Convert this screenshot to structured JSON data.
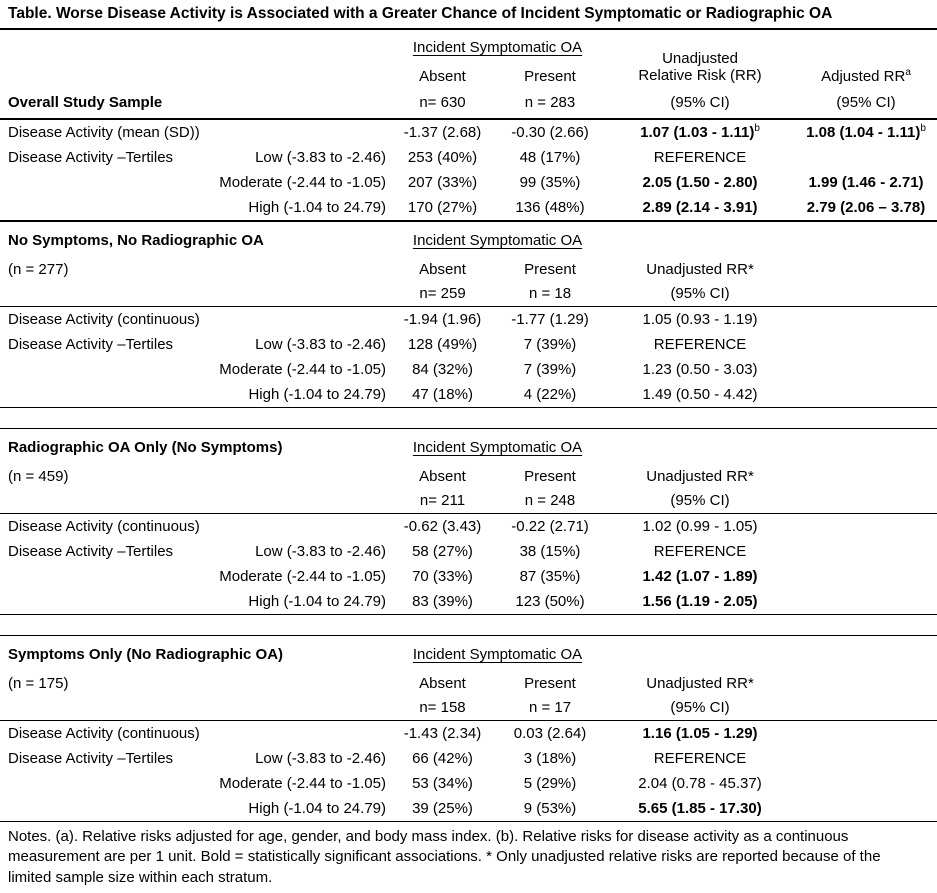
{
  "title": "Table. Worse Disease Activity is Associated with a Greater Chance of Incident Symptomatic or Radiographic OA",
  "notes": "Notes. (a). Relative risks adjusted for age, gender, and body mass index. (b). Relative risks for disease activity as a continuous measurement are per 1 unit. Bold = statistically significant associations. * Only unadjusted relative risks are reported because of the limited sample size within each stratum.",
  "colors": {
    "text": "#000000",
    "background": "#ffffff",
    "rule": "#000000"
  },
  "table": {
    "sections": [
      {
        "id": "overall-study-sample",
        "layout": "overall",
        "gap_before": false,
        "title": "Overall Study Sample",
        "subtitle": "",
        "incident_header": "Incident Symptomatic OA",
        "absent_label": "Absent",
        "present_label": "Present",
        "n_absent": "n= 630",
        "n_present": "n = 283",
        "rr_header_lines": [
          "Unadjusted",
          "Relative Risk (RR)"
        ],
        "rr_ci_label": "(95% CI)",
        "adjusted_header": "Adjusted RR",
        "adjusted_header_sup": "a",
        "adjusted_ci_label": "(95% CI)",
        "rows": [
          {
            "label": "Disease Activity (mean (SD))",
            "tertile": "",
            "absent": "-1.37 (2.68)",
            "present": "-0.30 (2.66)",
            "rr": "1.07 (1.03 - 1.11)",
            "rr_sup": "b",
            "rr_bold": true,
            "adjusted": "1.08 (1.04 - 1.11)",
            "adjusted_sup": "b",
            "adjusted_bold": true
          },
          {
            "label": "Disease Activity –Tertiles",
            "tertile": "Low (-3.83 to -2.46)",
            "absent": "253 (40%)",
            "present": "48 (17%)",
            "rr": "REFERENCE",
            "rr_bold": false,
            "adjusted": "",
            "adjusted_bold": false
          },
          {
            "label": "",
            "tertile": "Moderate (-2.44 to -1.05)",
            "absent": "207 (33%)",
            "present": "99 (35%)",
            "rr": "2.05 (1.50 - 2.80)",
            "rr_bold": true,
            "adjusted": "1.99 (1.46 - 2.71)",
            "adjusted_bold": true
          },
          {
            "label": "",
            "tertile": "High (-1.04 to 24.79)",
            "absent": "170 (27%)",
            "present": "136 (48%)",
            "rr": "2.89 (2.14 - 3.91)",
            "rr_bold": true,
            "adjusted": "2.79 (2.06 – 3.78)",
            "adjusted_bold": true
          }
        ]
      },
      {
        "id": "no-symptoms-no-radiographic-oa",
        "layout": "stratum",
        "gap_before": false,
        "title": "No Symptoms, No Radiographic OA",
        "subtitle": "(n = 277)",
        "incident_header": "Incident Symptomatic OA",
        "absent_label": "Absent",
        "present_label": "Present",
        "n_absent": "n= 259",
        "n_present": "n = 18",
        "rr_header_lines": [
          "Unadjusted RR*"
        ],
        "rr_ci_label": "(95% CI)",
        "rows": [
          {
            "label": "Disease Activity (continuous)",
            "tertile": "",
            "absent": "-1.94 (1.96)",
            "present": "-1.77 (1.29)",
            "rr": "1.05 (0.93 - 1.19)",
            "rr_bold": false,
            "adjusted": ""
          },
          {
            "label": "Disease Activity –Tertiles",
            "tertile": "Low (-3.83 to -2.46)",
            "absent": "128 (49%)",
            "present": "7 (39%)",
            "rr": "REFERENCE",
            "rr_bold": false,
            "adjusted": ""
          },
          {
            "label": "",
            "tertile": "Moderate (-2.44 to -1.05)",
            "absent": "84 (32%)",
            "present": "7 (39%)",
            "rr": "1.23 (0.50 - 3.03)",
            "rr_bold": false,
            "adjusted": ""
          },
          {
            "label": "",
            "tertile": "High (-1.04 to 24.79)",
            "absent": "47 (18%)",
            "present": "4 (22%)",
            "rr": "1.49 (0.50 - 4.42)",
            "rr_bold": false,
            "adjusted": ""
          }
        ]
      },
      {
        "id": "radiographic-oa-only",
        "layout": "stratum",
        "gap_before": true,
        "title": "Radiographic OA Only (No Symptoms)",
        "subtitle": "(n = 459)",
        "incident_header": "Incident Symptomatic OA",
        "absent_label": "Absent",
        "present_label": "Present",
        "n_absent": "n= 211",
        "n_present": "n = 248",
        "rr_header_lines": [
          "Unadjusted RR*"
        ],
        "rr_ci_label": "(95% CI)",
        "rows": [
          {
            "label": "Disease Activity (continuous)",
            "tertile": "",
            "absent": "-0.62 (3.43)",
            "present": "-0.22 (2.71)",
            "rr": "1.02 (0.99 - 1.05)",
            "rr_bold": false,
            "adjusted": ""
          },
          {
            "label": "Disease Activity –Tertiles",
            "tertile": "Low (-3.83 to -2.46)",
            "absent": "58 (27%)",
            "present": "38 (15%)",
            "rr": "REFERENCE",
            "rr_bold": false,
            "adjusted": ""
          },
          {
            "label": "",
            "tertile": "Moderate (-2.44 to -1.05)",
            "absent": "70 (33%)",
            "present": "87 (35%)",
            "rr": "1.42 (1.07 - 1.89)",
            "rr_bold": true,
            "adjusted": ""
          },
          {
            "label": "",
            "tertile": "High (-1.04 to 24.79)",
            "absent": "83 (39%)",
            "present": "123 (50%)",
            "rr": "1.56 (1.19 - 2.05)",
            "rr_bold": true,
            "adjusted": ""
          }
        ]
      },
      {
        "id": "symptoms-only",
        "layout": "stratum",
        "gap_before": true,
        "title": "Symptoms Only (No Radiographic OA)",
        "subtitle": "(n = 175)",
        "incident_header": "Incident Symptomatic OA",
        "absent_label": "Absent",
        "present_label": "Present",
        "n_absent": "n= 158",
        "n_present": "n = 17",
        "rr_header_lines": [
          "Unadjusted RR*"
        ],
        "rr_ci_label": "(95% CI)",
        "rows": [
          {
            "label": "Disease Activity (continuous)",
            "tertile": "",
            "absent": "-1.43 (2.34)",
            "present": "0.03 (2.64)",
            "rr": "1.16 (1.05 - 1.29)",
            "rr_bold": true,
            "adjusted": ""
          },
          {
            "label": "Disease Activity –Tertiles",
            "tertile": "Low (-3.83 to -2.46)",
            "absent": "66 (42%)",
            "present": "3 (18%)",
            "rr": "REFERENCE",
            "rr_bold": false,
            "adjusted": ""
          },
          {
            "label": "",
            "tertile": "Moderate (-2.44 to -1.05)",
            "absent": "53 (34%)",
            "present": "5 (29%)",
            "rr": "2.04 (0.78 - 45.37)",
            "rr_bold": false,
            "adjusted": ""
          },
          {
            "label": "",
            "tertile": "High (-1.04 to 24.79)",
            "absent": "39 (25%)",
            "present": "9 (53%)",
            "rr": "5.65 (1.85 - 17.30)",
            "rr_bold": true,
            "adjusted": ""
          }
        ]
      }
    ]
  }
}
